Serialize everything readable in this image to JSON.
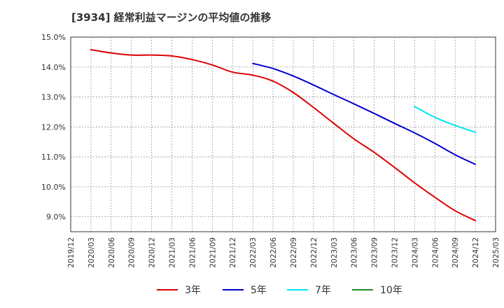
{
  "chart_data": {
    "type": "line",
    "title": "[3934]  経常利益マージンの平均値の推移",
    "xlabel": "",
    "ylabel": "",
    "x_ticks": [
      "2019/12",
      "2020/03",
      "2020/06",
      "2020/09",
      "2020/12",
      "2021/03",
      "2021/06",
      "2021/09",
      "2021/12",
      "2022/03",
      "2022/06",
      "2022/09",
      "2022/12",
      "2023/03",
      "2023/06",
      "2023/09",
      "2023/12",
      "2024/03",
      "2024/06",
      "2024/09",
      "2024/12",
      "2025/03"
    ],
    "y_ticks": [
      "15.0%",
      "14.0%",
      "13.0%",
      "12.0%",
      "11.0%",
      "10.0%",
      "9.0%"
    ],
    "ylim": [
      8.5,
      15.0
    ],
    "y_unit": "%",
    "grid": true,
    "legend_position": "bottom",
    "series": [
      {
        "name": "3年",
        "color": "#dd0000",
        "x": [
          "2020/03",
          "2020/06",
          "2020/09",
          "2020/12",
          "2021/03",
          "2021/06",
          "2021/09",
          "2021/12",
          "2022/03",
          "2022/06",
          "2022/09",
          "2022/12",
          "2023/03",
          "2023/06",
          "2023/09",
          "2023/12",
          "2024/03",
          "2024/06",
          "2024/09",
          "2024/12"
        ],
        "values": [
          14.58,
          14.47,
          14.4,
          14.4,
          14.37,
          14.25,
          14.07,
          13.83,
          13.73,
          13.53,
          13.15,
          12.65,
          12.12,
          11.6,
          11.15,
          10.65,
          10.13,
          9.65,
          9.2,
          8.87
        ]
      },
      {
        "name": "5年",
        "color": "#0000cc",
        "x": [
          "2022/03",
          "2022/06",
          "2022/09",
          "2022/12",
          "2023/03",
          "2023/06",
          "2023/09",
          "2023/12",
          "2024/03",
          "2024/06",
          "2024/09",
          "2024/12"
        ],
        "values": [
          14.12,
          13.95,
          13.7,
          13.4,
          13.08,
          12.77,
          12.45,
          12.12,
          11.8,
          11.45,
          11.07,
          10.75
        ]
      },
      {
        "name": "7年",
        "color": "#00e5ee",
        "x": [
          "2024/03",
          "2024/06",
          "2024/09",
          "2024/12"
        ],
        "values": [
          12.68,
          12.32,
          12.05,
          11.82
        ]
      },
      {
        "name": "10年",
        "color": "#228b22",
        "x": [],
        "values": []
      }
    ]
  }
}
